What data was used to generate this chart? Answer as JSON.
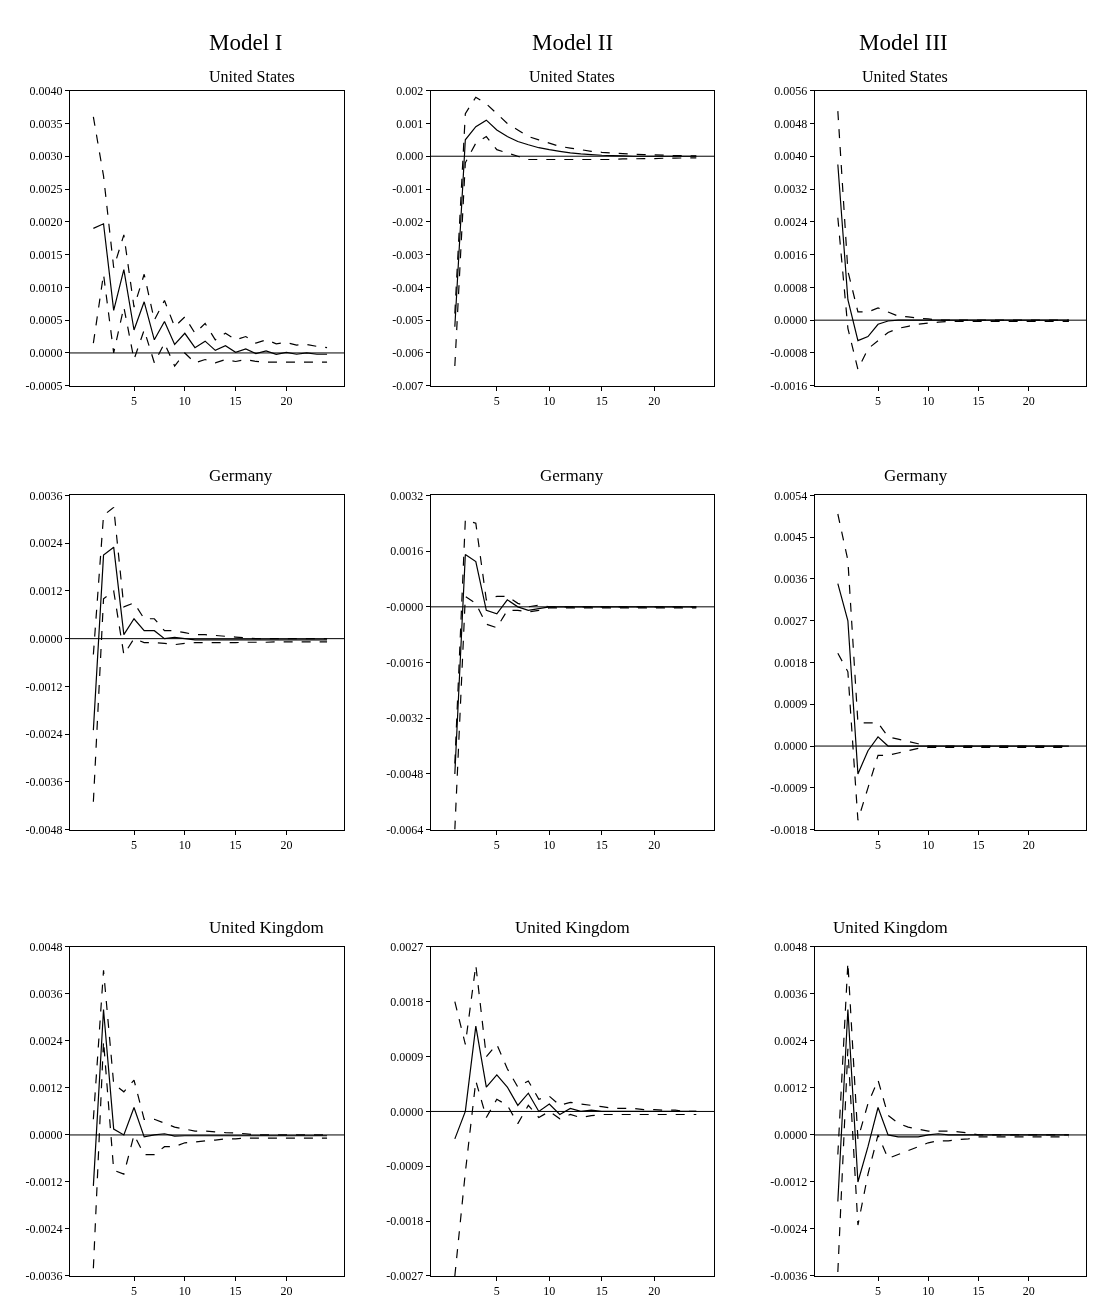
{
  "chart_data": [
    {
      "type": "line",
      "title": "Model I",
      "subtitle": "United States",
      "x": [
        1,
        2,
        3,
        4,
        5,
        6,
        7,
        8,
        9,
        10,
        11,
        12,
        13,
        14,
        15,
        16,
        17,
        18,
        19,
        20,
        21,
        22,
        23,
        24
      ],
      "xlim": [
        -1.3,
        25.7
      ],
      "xticks": [
        5,
        10,
        15,
        20
      ],
      "ylim": [
        -0.0005,
        0.004
      ],
      "yticks": [
        {
          "value": -0.0005,
          "label": "-0.0005"
        },
        {
          "value": 0,
          "label": "0.0000"
        },
        {
          "value": 0.0005,
          "label": "0.0005"
        },
        {
          "value": 0.001,
          "label": "0.0010"
        },
        {
          "value": 0.0015,
          "label": "0.0015"
        },
        {
          "value": 0.002,
          "label": "0.0020"
        },
        {
          "value": 0.0025,
          "label": "0.0025"
        },
        {
          "value": 0.003,
          "label": "0.0030"
        },
        {
          "value": 0.0035,
          "label": "0.0035"
        },
        {
          "value": 0.004,
          "label": "0.0040"
        }
      ],
      "ref_lines": [
        {
          "axis": "y",
          "value": 0,
          "color": "#000000"
        }
      ],
      "series": [
        {
          "color": "#000000",
          "line_style": "solid",
          "values": [
            0.0019,
            0.00197,
            0.00065,
            0.00127,
            0.00035,
            0.00078,
            0.0002,
            0.00048,
            0.00013,
            0.0003,
            8e-05,
            0.00018,
            4e-05,
            0.00011,
            1e-05,
            6e-05,
            -1e-05,
            3e-05,
            -2e-05,
            1e-05,
            -2e-05,
            0,
            -2e-05,
            -2e-05
          ]
        },
        {
          "color": "#000000",
          "line_style": "dashed",
          "values": [
            0.0036,
            0.0027,
            0.0013,
            0.0018,
            0.0007,
            0.0012,
            0.0005,
            0.0008,
            0.0004,
            0.00055,
            0.0003,
            0.00045,
            0.0002,
            0.0003,
            0.0002,
            0.00025,
            0.00015,
            0.0002,
            0.00014,
            0.00016,
            0.00012,
            0.00013,
            0.0001,
            8e-05
          ]
        },
        {
          "color": "#000000",
          "line_style": "dashed",
          "values": [
            0.00015,
            0.0012,
            0,
            0.0007,
            -0.0001,
            0.00035,
            -0.00015,
            0.00015,
            -0.0002,
            0,
            -0.00015,
            -0.0001,
            -0.00015,
            -0.0001,
            -0.00013,
            -0.0001,
            -0.00013,
            -0.00014,
            -0.00014,
            -0.00014,
            -0.00014,
            -0.00014,
            -0.00014,
            -0.00014
          ]
        }
      ]
    },
    {
      "type": "line",
      "title": "Model II",
      "subtitle": "United States",
      "x": [
        1,
        2,
        3,
        4,
        5,
        6,
        7,
        8,
        9,
        10,
        11,
        12,
        13,
        14,
        15,
        16,
        17,
        18,
        19,
        20,
        21,
        22,
        23,
        24
      ],
      "xlim": [
        -1.3,
        25.7
      ],
      "xticks": [
        5,
        10,
        15,
        20
      ],
      "ylim": [
        -0.007,
        0.002
      ],
      "yticks": [
        {
          "value": -0.007,
          "label": "-0.007"
        },
        {
          "value": -0.006,
          "label": "-0.006"
        },
        {
          "value": -0.005,
          "label": "-0.005"
        },
        {
          "value": -0.004,
          "label": "-0.004"
        },
        {
          "value": -0.003,
          "label": "-0.003"
        },
        {
          "value": -0.002,
          "label": "-0.002"
        },
        {
          "value": -0.001,
          "label": "-0.001"
        },
        {
          "value": 0,
          "label": "0.000"
        },
        {
          "value": 0.001,
          "label": "0.001"
        },
        {
          "value": 0.002,
          "label": "0.002"
        }
      ],
      "ref_lines": [
        {
          "axis": "y",
          "value": 0,
          "color": "#000000"
        }
      ],
      "series": [
        {
          "color": "#000000",
          "line_style": "solid",
          "values": [
            -0.0052,
            0.0005,
            0.0009,
            0.0011,
            0.0008,
            0.0006,
            0.00045,
            0.00035,
            0.00026,
            0.0002,
            0.00015,
            0.0001,
            7e-05,
            5e-05,
            3e-05,
            2e-05,
            1e-05,
            0,
            0,
            0,
            0,
            0,
            0,
            0
          ]
        },
        {
          "color": "#000000",
          "line_style": "dashed",
          "values": [
            -0.0048,
            0.0013,
            0.0018,
            0.0016,
            0.0013,
            0.001,
            0.0008,
            0.0006,
            0.0005,
            0.0004,
            0.0003,
            0.00025,
            0.0002,
            0.00015,
            0.00012,
            0.0001,
            8e-05,
            6e-05,
            5e-05,
            4e-05,
            3e-05,
            2e-05,
            2e-05,
            1e-05
          ]
        },
        {
          "color": "#000000",
          "line_style": "dashed",
          "values": [
            -0.0064,
            -0.0002,
            0.0004,
            0.0006,
            0.0002,
            0.0001,
            0,
            -0.0001,
            -0.0001,
            -0.0001,
            -0.0001,
            -0.0001,
            -0.0001,
            -0.0001,
            -0.0001,
            -0.0001,
            -8e-05,
            -8e-05,
            -7e-05,
            -7e-05,
            -6e-05,
            -6e-05,
            -5e-05,
            -5e-05
          ]
        }
      ]
    },
    {
      "type": "line",
      "title": "Model III",
      "subtitle": "United States",
      "x": [
        1,
        2,
        3,
        4,
        5,
        6,
        7,
        8,
        9,
        10,
        11,
        12,
        13,
        14,
        15,
        16,
        17,
        18,
        19,
        20,
        21,
        22,
        23,
        24
      ],
      "xlim": [
        -1.3,
        25.7
      ],
      "xticks": [
        5,
        10,
        15,
        20
      ],
      "ylim": [
        -0.0016,
        0.0056
      ],
      "yticks": [
        {
          "value": -0.0016,
          "label": "-0.0016"
        },
        {
          "value": -0.0008,
          "label": "-0.0008"
        },
        {
          "value": 0,
          "label": "0.0000"
        },
        {
          "value": 0.0008,
          "label": "0.0008"
        },
        {
          "value": 0.0016,
          "label": "0.0016"
        },
        {
          "value": 0.0024,
          "label": "0.0024"
        },
        {
          "value": 0.0032,
          "label": "0.0032"
        },
        {
          "value": 0.004,
          "label": "0.0040"
        },
        {
          "value": 0.0048,
          "label": "0.0048"
        },
        {
          "value": 0.0056,
          "label": "0.0056"
        }
      ],
      "ref_lines": [
        {
          "axis": "y",
          "value": 0,
          "color": "#000000"
        }
      ],
      "series": [
        {
          "color": "#000000",
          "line_style": "solid",
          "values": [
            0.0038,
            0.0005,
            -0.0005,
            -0.0004,
            -0.0001,
            -2e-05,
            0,
            0,
            0,
            0,
            0,
            0,
            0,
            0,
            0,
            0,
            0,
            0,
            0,
            0,
            0,
            0,
            0,
            0
          ]
        },
        {
          "color": "#000000",
          "line_style": "dashed",
          "values": [
            0.0051,
            0.0012,
            0.0002,
            0.0002,
            0.0003,
            0.0002,
            0.0001,
            8e-05,
            5e-05,
            3e-05,
            0,
            0,
            0,
            0,
            0,
            0,
            0,
            0,
            0,
            0,
            0,
            0,
            0,
            0
          ]
        },
        {
          "color": "#000000",
          "line_style": "dashed",
          "values": [
            0.0025,
            -0.0002,
            -0.0012,
            -0.0007,
            -0.0005,
            -0.0003,
            -0.0002,
            -0.00015,
            -0.0001,
            -7e-05,
            -5e-05,
            -3e-05,
            -3e-05,
            -3e-05,
            -3e-05,
            -3e-05,
            -3e-05,
            -3e-05,
            -3e-05,
            -3e-05,
            -3e-05,
            -3e-05,
            -3e-05,
            -3e-05
          ]
        }
      ]
    },
    {
      "type": "line",
      "title": "Germany",
      "x": [
        1,
        2,
        3,
        4,
        5,
        6,
        7,
        8,
        9,
        10,
        11,
        12,
        13,
        14,
        15,
        16,
        17,
        18,
        19,
        20,
        21,
        22,
        23,
        24
      ],
      "xlim": [
        -1.3,
        25.7
      ],
      "xticks": [
        5,
        10,
        15,
        20
      ],
      "ylim": [
        -0.0048,
        0.0036
      ],
      "yticks": [
        {
          "value": -0.0048,
          "label": "-0.0048"
        },
        {
          "value": -0.0036,
          "label": "-0.0036"
        },
        {
          "value": -0.0024,
          "label": "-0.0024"
        },
        {
          "value": -0.0012,
          "label": "-0.0012"
        },
        {
          "value": 0,
          "label": "0.0000"
        },
        {
          "value": 0.0012,
          "label": "0.0012"
        },
        {
          "value": 0.0024,
          "label": "0.0024"
        },
        {
          "value": 0.0036,
          "label": "0.0036"
        }
      ],
      "ref_lines": [
        {
          "axis": "y",
          "value": 0,
          "color": "#000000"
        }
      ],
      "series": [
        {
          "color": "#000000",
          "line_style": "solid",
          "values": [
            -0.0023,
            0.0021,
            0.0023,
            0.0001,
            0.0005,
            0.0002,
            0.0002,
            0,
            3e-05,
            0,
            -3e-05,
            -3e-05,
            -3e-05,
            -3e-05,
            -3e-05,
            -3e-05,
            -3e-05,
            -3e-05,
            -3e-05,
            -3e-05,
            -3e-05,
            -3e-05,
            -3e-05,
            -3e-05
          ]
        },
        {
          "color": "#000000",
          "line_style": "dashed",
          "values": [
            -0.0004,
            0.0031,
            0.0033,
            0.0008,
            0.0009,
            0.0005,
            0.0005,
            0.0002,
            0.0002,
            0.00015,
            0.0001,
            0.0001,
            8e-05,
            6e-05,
            4e-05,
            2e-05,
            0,
            0,
            0,
            0,
            0,
            0,
            0,
            0
          ]
        },
        {
          "color": "#000000",
          "line_style": "dashed",
          "values": [
            -0.0041,
            0.001,
            0.0012,
            -0.0004,
            0,
            -0.0001,
            -0.0001,
            -0.00012,
            -0.00015,
            -0.00012,
            -0.0001,
            -0.0001,
            -0.0001,
            -0.0001,
            -0.0001,
            -9e-05,
            -9e-05,
            -9e-05,
            -8e-05,
            -8e-05,
            -8e-05,
            -8e-05,
            -8e-05,
            -8e-05
          ]
        }
      ]
    },
    {
      "type": "line",
      "title": "Germany",
      "x": [
        1,
        2,
        3,
        4,
        5,
        6,
        7,
        8,
        9,
        10,
        11,
        12,
        13,
        14,
        15,
        16,
        17,
        18,
        19,
        20,
        21,
        22,
        23,
        24
      ],
      "xlim": [
        -1.3,
        25.7
      ],
      "xticks": [
        5,
        10,
        15,
        20
      ],
      "ylim": [
        -0.0064,
        0.0032
      ],
      "yticks": [
        {
          "value": -0.0064,
          "label": "-0.0064"
        },
        {
          "value": -0.0048,
          "label": "-0.0048"
        },
        {
          "value": -0.0032,
          "label": "-0.0032"
        },
        {
          "value": -0.0016,
          "label": "-0.0016"
        },
        {
          "value": 0,
          "label": "-0.0000"
        },
        {
          "value": 0.0016,
          "label": "0.0016"
        },
        {
          "value": 0.0032,
          "label": "0.0032"
        }
      ],
      "ref_lines": [
        {
          "axis": "y",
          "value": 0,
          "color": "#000000"
        }
      ],
      "series": [
        {
          "color": "#000000",
          "line_style": "solid",
          "values": [
            -0.0048,
            0.0015,
            0.0013,
            -0.0001,
            -0.0002,
            0.0002,
            0,
            -0.0001,
            -5e-05,
            0,
            0,
            0,
            0,
            0,
            0,
            0,
            0,
            0,
            0,
            0,
            0,
            0,
            0,
            0
          ]
        },
        {
          "color": "#000000",
          "line_style": "dashed",
          "values": [
            -0.0045,
            0.0025,
            0.0024,
            0.0002,
            0.0003,
            0.0003,
            0.0001,
            0,
            5e-05,
            0,
            0,
            0,
            0,
            0,
            0,
            0,
            0,
            0,
            0,
            0,
            0,
            0,
            0,
            0
          ]
        },
        {
          "color": "#000000",
          "line_style": "dashed",
          "values": [
            -0.0064,
            0.0003,
            0.0001,
            -0.0005,
            -0.0006,
            -0.0001,
            -0.0001,
            -0.00015,
            -0.0001,
            -3e-05,
            -3e-05,
            -3e-05,
            -3e-05,
            -3e-05,
            -3e-05,
            -3e-05,
            -3e-05,
            -3e-05,
            -3e-05,
            -3e-05,
            -3e-05,
            -3e-05,
            -3e-05,
            -3e-05
          ]
        }
      ]
    },
    {
      "type": "line",
      "title": "Germany",
      "x": [
        1,
        2,
        3,
        4,
        5,
        6,
        7,
        8,
        9,
        10,
        11,
        12,
        13,
        14,
        15,
        16,
        17,
        18,
        19,
        20,
        21,
        22,
        23,
        24
      ],
      "xlim": [
        -1.3,
        25.7
      ],
      "xticks": [
        5,
        10,
        15,
        20
      ],
      "ylim": [
        -0.0018,
        0.0054
      ],
      "yticks": [
        {
          "value": -0.0018,
          "label": "-0.0018"
        },
        {
          "value": -0.0009,
          "label": "-0.0009"
        },
        {
          "value": 0,
          "label": "0.0000"
        },
        {
          "value": 0.0009,
          "label": "0.0009"
        },
        {
          "value": 0.0018,
          "label": "0.0018"
        },
        {
          "value": 0.0027,
          "label": "0.0027"
        },
        {
          "value": 0.0036,
          "label": "0.0036"
        },
        {
          "value": 0.0045,
          "label": "0.0045"
        },
        {
          "value": 0.0054,
          "label": "0.0054"
        }
      ],
      "ref_lines": [
        {
          "axis": "y",
          "value": 0,
          "color": "#000000"
        }
      ],
      "series": [
        {
          "color": "#000000",
          "line_style": "solid",
          "values": [
            0.0035,
            0.0027,
            -0.0006,
            -0.0001,
            0.0002,
            0,
            0,
            0,
            0,
            0,
            0,
            0,
            0,
            0,
            0,
            0,
            0,
            0,
            0,
            0,
            0,
            0,
            0,
            0
          ]
        },
        {
          "color": "#000000",
          "line_style": "dashed",
          "values": [
            0.005,
            0.004,
            0.0005,
            0.0005,
            0.0005,
            0.0002,
            0.00015,
            0.0001,
            5e-05,
            0,
            0,
            0,
            0,
            0,
            0,
            0,
            0,
            0,
            0,
            0,
            0,
            0,
            0,
            0
          ]
        },
        {
          "color": "#000000",
          "line_style": "dashed",
          "values": [
            0.002,
            0.0016,
            -0.0016,
            -0.0009,
            -0.0002,
            -0.0002,
            -0.00015,
            -0.0001,
            -5e-05,
            -3e-05,
            -3e-05,
            -3e-05,
            -3e-05,
            -3e-05,
            -3e-05,
            -3e-05,
            -3e-05,
            -3e-05,
            -3e-05,
            -3e-05,
            -3e-05,
            -3e-05,
            -3e-05,
            -3e-05
          ]
        }
      ]
    },
    {
      "type": "line",
      "title": "United Kingdom",
      "x": [
        1,
        2,
        3,
        4,
        5,
        6,
        7,
        8,
        9,
        10,
        11,
        12,
        13,
        14,
        15,
        16,
        17,
        18,
        19,
        20,
        21,
        22,
        23,
        24
      ],
      "xlim": [
        -1.3,
        25.7
      ],
      "xticks": [
        5,
        10,
        15,
        20
      ],
      "ylim": [
        -0.0036,
        0.0048
      ],
      "yticks": [
        {
          "value": -0.0036,
          "label": "-0.0036"
        },
        {
          "value": -0.0024,
          "label": "-0.0024"
        },
        {
          "value": -0.0012,
          "label": "-0.0012"
        },
        {
          "value": 0,
          "label": "0.0000"
        },
        {
          "value": 0.0012,
          "label": "0.0012"
        },
        {
          "value": 0.0024,
          "label": "0.0024"
        },
        {
          "value": 0.0036,
          "label": "0.0036"
        },
        {
          "value": 0.0048,
          "label": "0.0048"
        }
      ],
      "ref_lines": [
        {
          "axis": "y",
          "value": 0,
          "color": "#000000"
        }
      ],
      "series": [
        {
          "color": "#000000",
          "line_style": "solid",
          "values": [
            -0.0013,
            0.0032,
            0.00015,
            0,
            0.0007,
            -5e-05,
            0,
            3e-05,
            -3e-05,
            -2e-05,
            -2e-05,
            -2e-05,
            -2e-05,
            -2e-05,
            -2e-05,
            -2e-05,
            -2e-05,
            -2e-05,
            -2e-05,
            -2e-05,
            -2e-05,
            -2e-05,
            -2e-05,
            -2e-05
          ]
        },
        {
          "color": "#000000",
          "line_style": "dashed",
          "values": [
            0.0004,
            0.0042,
            0.0013,
            0.0011,
            0.0014,
            0.0004,
            0.0004,
            0.0003,
            0.0002,
            0.00015,
            0.0001,
            0.0001,
            8e-05,
            6e-05,
            5e-05,
            3e-05,
            0,
            0,
            0,
            0,
            0,
            0,
            0,
            0
          ]
        },
        {
          "color": "#000000",
          "line_style": "dashed",
          "values": [
            -0.0034,
            0.0024,
            -0.0009,
            -0.001,
            0,
            -0.0005,
            -0.0005,
            -0.0003,
            -0.0003,
            -0.0002,
            -0.00018,
            -0.00015,
            -0.00013,
            -0.0001,
            -0.0001,
            -8e-05,
            -8e-05,
            -8e-05,
            -8e-05,
            -8e-05,
            -8e-05,
            -8e-05,
            -8e-05,
            -8e-05
          ]
        }
      ]
    },
    {
      "type": "line",
      "title": "United Kingdom",
      "x": [
        1,
        2,
        3,
        4,
        5,
        6,
        7,
        8,
        9,
        10,
        11,
        12,
        13,
        14,
        15,
        16,
        17,
        18,
        19,
        20,
        21,
        22,
        23,
        24
      ],
      "xlim": [
        -1.3,
        25.7
      ],
      "xticks": [
        5,
        10,
        15,
        20
      ],
      "ylim": [
        -0.0027,
        0.0027
      ],
      "yticks": [
        {
          "value": -0.0027,
          "label": "-0.0027"
        },
        {
          "value": -0.0018,
          "label": "-0.0018"
        },
        {
          "value": -0.0009,
          "label": "-0.0009"
        },
        {
          "value": 0,
          "label": "0.0000"
        },
        {
          "value": 0.0009,
          "label": "0.0009"
        },
        {
          "value": 0.0018,
          "label": "0.0018"
        },
        {
          "value": 0.0027,
          "label": "0.0027"
        }
      ],
      "ref_lines": [
        {
          "axis": "y",
          "value": 0,
          "color": "#000000"
        }
      ],
      "series": [
        {
          "color": "#000000",
          "line_style": "solid",
          "values": [
            -0.00045,
            0,
            0.0014,
            0.0004,
            0.0006,
            0.0004,
            0.0001,
            0.0003,
            0,
            0.00012,
            -5e-05,
            5e-05,
            0,
            2e-05,
            0,
            0,
            0,
            0,
            0,
            0,
            0,
            0,
            0,
            0
          ]
        },
        {
          "color": "#000000",
          "line_style": "dashed",
          "values": [
            0.0018,
            0.0011,
            0.0024,
            0.0009,
            0.0011,
            0.0007,
            0.0004,
            0.0005,
            0.0002,
            0.00025,
            0.0001,
            0.00015,
            0.00012,
            0.0001,
            8e-05,
            5e-05,
            5e-05,
            5e-05,
            3e-05,
            3e-05,
            2e-05,
            2e-05,
            0,
            0
          ]
        },
        {
          "color": "#000000",
          "line_style": "dashed",
          "values": [
            -0.0027,
            -0.001,
            0.0005,
            -0.0001,
            0.0002,
            0.0001,
            -0.0002,
            0.0001,
            -0.0001,
            0,
            -0.00012,
            -5e-05,
            -0.0001,
            -7e-05,
            -5e-05,
            -5e-05,
            -5e-05,
            -5e-05,
            -5e-05,
            -5e-05,
            -5e-05,
            -5e-05,
            -5e-05,
            -5e-05
          ]
        }
      ]
    },
    {
      "type": "line",
      "title": "United Kingdom",
      "x": [
        1,
        2,
        3,
        4,
        5,
        6,
        7,
        8,
        9,
        10,
        11,
        12,
        13,
        14,
        15,
        16,
        17,
        18,
        19,
        20,
        21,
        22,
        23,
        24
      ],
      "xlim": [
        -1.3,
        25.7
      ],
      "xticks": [
        5,
        10,
        15,
        20
      ],
      "ylim": [
        -0.0036,
        0.0048
      ],
      "yticks": [
        {
          "value": -0.0036,
          "label": "-0.0036"
        },
        {
          "value": -0.0024,
          "label": "-0.0024"
        },
        {
          "value": -0.0012,
          "label": "-0.0012"
        },
        {
          "value": 0,
          "label": "0.0000"
        },
        {
          "value": 0.0012,
          "label": "0.0012"
        },
        {
          "value": 0.0024,
          "label": "0.0024"
        },
        {
          "value": 0.0036,
          "label": "0.0036"
        },
        {
          "value": 0.0048,
          "label": "0.0048"
        }
      ],
      "ref_lines": [
        {
          "axis": "y",
          "value": 0,
          "color": "#000000"
        }
      ],
      "series": [
        {
          "color": "#000000",
          "line_style": "solid",
          "values": [
            -0.0017,
            0.0032,
            -0.0012,
            -0.0003,
            0.0007,
            0,
            -5e-05,
            -5e-05,
            -5e-05,
            0,
            3e-05,
            0,
            0,
            0,
            0,
            0,
            0,
            0,
            0,
            0,
            0,
            0,
            0,
            0
          ]
        },
        {
          "color": "#000000",
          "line_style": "dashed",
          "values": [
            -0.0005,
            0.0044,
            -0.0001,
            0.0008,
            0.0014,
            0.0005,
            0.0003,
            0.0002,
            0.00015,
            0.0001,
            0.0001,
            0.0001,
            8e-05,
            5e-05,
            0,
            0,
            0,
            0,
            0,
            0,
            0,
            0,
            0,
            0
          ]
        },
        {
          "color": "#000000",
          "line_style": "dashed",
          "values": [
            -0.0035,
            0.0022,
            -0.0023,
            -0.001,
            0,
            -0.0006,
            -0.0005,
            -0.0004,
            -0.0003,
            -0.0002,
            -0.00015,
            -0.00015,
            -0.00012,
            -0.0001,
            -5e-05,
            -5e-05,
            -5e-05,
            -5e-05,
            -5e-05,
            -5e-05,
            -5e-05,
            -5e-05,
            -5e-05,
            -5e-05
          ]
        }
      ]
    }
  ]
}
